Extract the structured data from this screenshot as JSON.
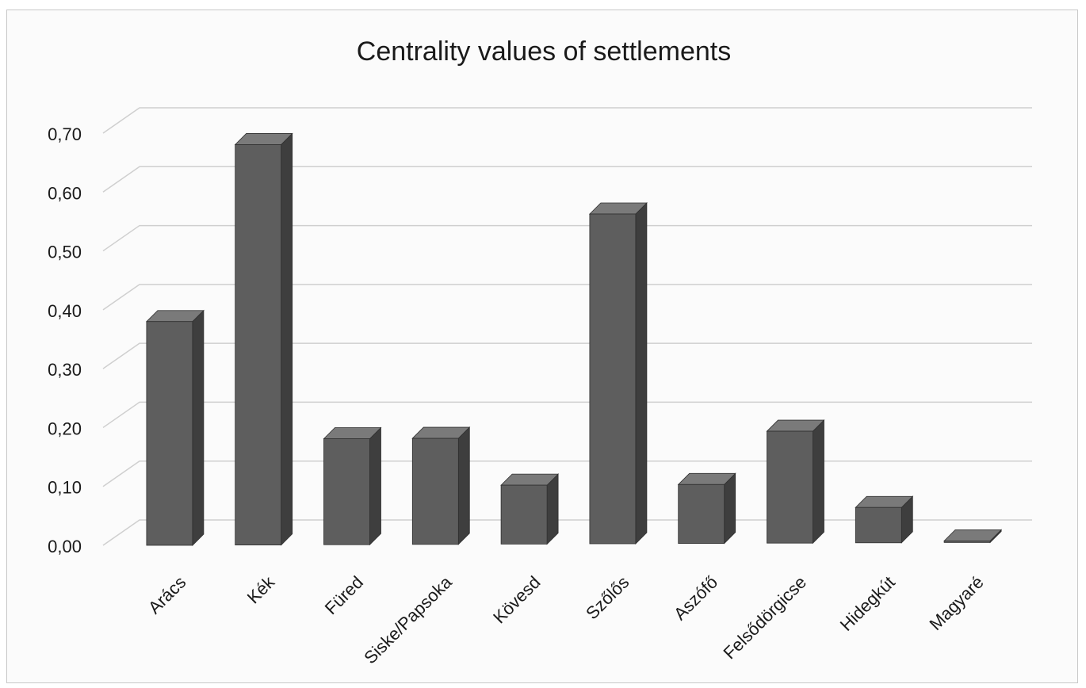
{
  "chart_data": {
    "type": "bar",
    "title": "Centrality values of settlements",
    "xlabel": "",
    "ylabel": "",
    "categories": [
      "Arács",
      "Kék",
      "Füred",
      "Siske/Papsoka",
      "Kövesd",
      "Szőlős",
      "Aszófő",
      "Felsődörgicse",
      "Hidegkút",
      "Magyaré"
    ],
    "values": [
      0.38,
      0.68,
      0.18,
      0.18,
      0.1,
      0.56,
      0.1,
      0.19,
      0.06,
      0.0
    ],
    "ylim": [
      0,
      0.7
    ],
    "yticks": [
      "0,00",
      "0,10",
      "0,20",
      "0,30",
      "0,40",
      "0,50",
      "0,60",
      "0,70"
    ],
    "grid": true,
    "legend": "none",
    "style": "3d-column",
    "colors": {
      "bar_front": "#5e5e5e",
      "bar_side": "#3e3e3e",
      "bar_top": "#7a7a7a",
      "gridline": "#cfcfcf",
      "text": "#1a1a1a"
    }
  }
}
